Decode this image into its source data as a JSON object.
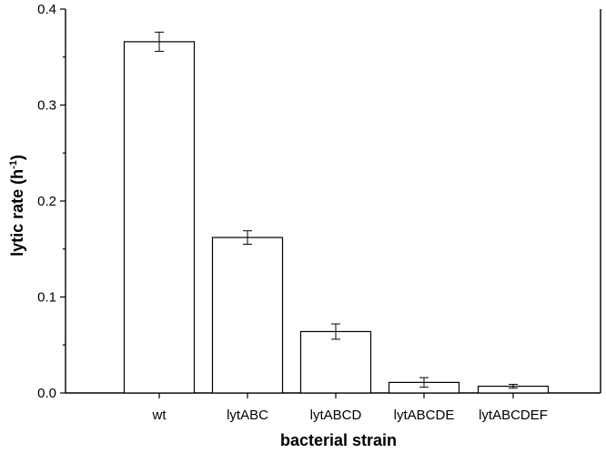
{
  "chart_data": {
    "type": "bar",
    "title": "",
    "xlabel": "bacterial strain",
    "ylabel": {
      "text": "lytic rate (h",
      "superscript": "-1",
      "suffix": ")"
    },
    "categories": [
      "wt",
      "lytABC",
      "lytABCD",
      "lytABCDE",
      "lytABCDEF"
    ],
    "series": [
      {
        "values": [
          0.366,
          0.162,
          0.064,
          0.011,
          0.007
        ],
        "errors": [
          0.01,
          0.007,
          0.008,
          0.005,
          0.002
        ]
      }
    ],
    "ylim": [
      0,
      0.4
    ],
    "yticks": [
      "0.0",
      "0.1",
      "0.2",
      "0.3",
      "0.4"
    ],
    "legend": "none",
    "grid": false,
    "bar_fill": "#ffffff",
    "bar_stroke": "#000000"
  }
}
